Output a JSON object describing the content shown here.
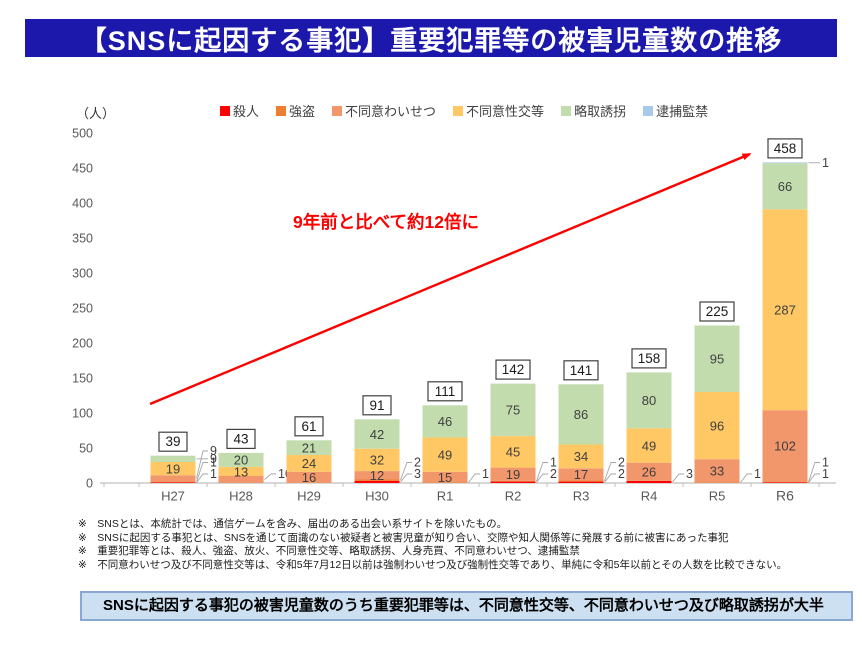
{
  "title": "【SNSに起因する事犯】重要犯罪等の被害児童数の推移",
  "unit_label": "（人）",
  "annotation": "9年前と比べて約12倍に",
  "chart_data": {
    "type": "bar",
    "stacked": true,
    "title": "【SNSに起因する事犯】重要犯罪等の被害児童数の推移",
    "xlabel": "",
    "ylabel": "（人）",
    "ylim": [
      0,
      500
    ],
    "ytick_step": 50,
    "grid": false,
    "legend_position": "top",
    "categories": [
      "H27",
      "H28",
      "H29",
      "H30",
      "R1",
      "R2",
      "R3",
      "R4",
      "R5",
      "R6"
    ],
    "series": [
      {
        "name": "殺人",
        "color": "#ff0000",
        "values": [
          1,
          0,
          0,
          3,
          0,
          2,
          2,
          3,
          0,
          1
        ]
      },
      {
        "name": "強盗",
        "color": "#ed7d31",
        "values": [
          1,
          0,
          0,
          2,
          1,
          1,
          2,
          0,
          1,
          1
        ]
      },
      {
        "name": "不同意わいせつ",
        "color": "#f2966b",
        "values": [
          9,
          10,
          16,
          12,
          15,
          19,
          17,
          26,
          33,
          102
        ]
      },
      {
        "name": "不同意性交等",
        "color": "#ffc865",
        "values": [
          19,
          13,
          24,
          32,
          49,
          45,
          34,
          49,
          96,
          287
        ]
      },
      {
        "name": "略取誘拐",
        "color": "#c3dcae",
        "values": [
          9,
          20,
          21,
          42,
          46,
          75,
          86,
          80,
          95,
          66
        ]
      },
      {
        "name": "逮捕監禁",
        "color": "#a9c9e8",
        "values": [
          0,
          0,
          0,
          0,
          0,
          0,
          0,
          0,
          0,
          1
        ]
      }
    ],
    "totals": [
      39,
      43,
      61,
      91,
      111,
      142,
      141,
      158,
      225,
      458
    ]
  },
  "footnotes": [
    "※　SNSとは、本統計では、通信ゲームを含み、届出のある出会い系サイトを除いたもの。",
    "※　SNSに起因する事犯とは、SNSを通じて面識のない被疑者と被害児童が知り合い、交際や知人関係等に発展する前に被害にあった事犯",
    "※　重要犯罪等とは、殺人、強盗、放火、不同意性交等、略取誘拐、人身売買、不同意わいせつ、逮捕監禁",
    "※　不同意わいせつ及び不同意性交等は、令和5年7月12日以前は強制わいせつ及び強制性交等であり、単純に令和5年以前とその人数を比較できない。"
  ],
  "summary_box": "　SNSに起因する事犯の被害児童数のうち重要犯罪等は、不同意性交等、不同意わいせつ及び略取誘拐が大半"
}
